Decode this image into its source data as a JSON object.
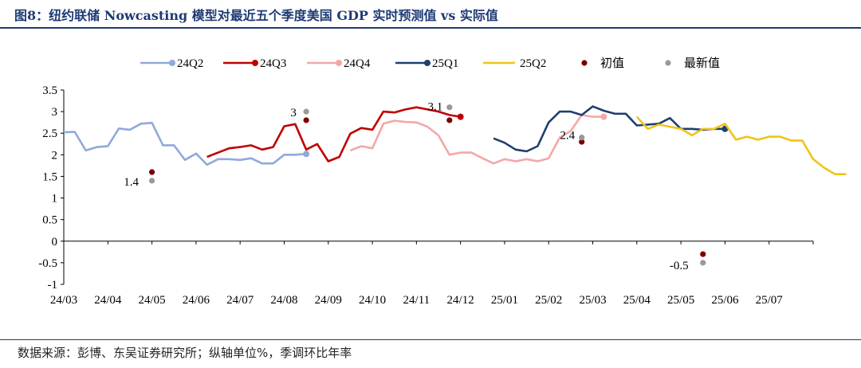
{
  "title": "图8：纽约联储 Nowcasting 模型对最近五个季度美国 GDP 实时预测值 vs 实际值",
  "footer": "数据来源：彭博、东吴证券研究所；纵轴单位%，季调环比年率",
  "chart_data": {
    "type": "line",
    "ylim": [
      -1,
      3.5
    ],
    "yticks": [
      "3.5",
      "3",
      "2.5",
      "2",
      "1.5",
      "1",
      "0.5",
      "0",
      "-0.5",
      "-1"
    ],
    "ytick_values": [
      3.5,
      3,
      2.5,
      2,
      1.5,
      1,
      0.5,
      0,
      -0.5,
      -1
    ],
    "xlim": [
      0,
      17
    ],
    "xticks": [
      "24/03",
      "24/04",
      "24/05",
      "24/06",
      "24/07",
      "24/08",
      "24/09",
      "24/10",
      "24/11",
      "24/12",
      "25/01",
      "25/02",
      "25/03",
      "25/04",
      "25/05",
      "25/06",
      "25/07"
    ],
    "legend_position": "top",
    "series": [
      {
        "name": "24Q2",
        "color": "#8fa9dc",
        "marker_end": true,
        "x": [
          0,
          0.25,
          0.5,
          0.75,
          1.0,
          1.25,
          1.5,
          1.75,
          2.0,
          2.25,
          2.5,
          2.75,
          3.0,
          3.25,
          3.5,
          3.75,
          4.0,
          4.25,
          4.5,
          4.75,
          5.0,
          5.25,
          5.5
        ],
        "y": [
          2.52,
          2.53,
          2.1,
          2.18,
          2.2,
          2.61,
          2.58,
          2.72,
          2.74,
          2.22,
          2.22,
          1.88,
          2.03,
          1.77,
          1.9,
          1.9,
          1.88,
          1.92,
          1.8,
          1.8,
          2.0,
          2.0,
          2.02
        ]
      },
      {
        "name": "24Q3",
        "color": "#c00000",
        "marker_end": true,
        "x": [
          3.25,
          3.5,
          3.75,
          4.0,
          4.25,
          4.5,
          4.75,
          5.0,
          5.25,
          5.5,
          5.75,
          6.0,
          6.25,
          6.5,
          6.75,
          7.0,
          7.25,
          7.5,
          7.75,
          8.0,
          8.25,
          8.5,
          8.75,
          9.0
        ],
        "y": [
          1.95,
          2.05,
          2.15,
          2.18,
          2.22,
          2.12,
          2.18,
          2.66,
          2.71,
          2.12,
          2.25,
          1.85,
          1.95,
          2.49,
          2.62,
          2.58,
          3.0,
          2.98,
          3.05,
          3.1,
          3.05,
          3.0,
          2.92,
          2.88
        ]
      },
      {
        "name": "24Q4",
        "color": "#f4a7a7",
        "marker_end": true,
        "x": [
          6.5,
          6.75,
          7.0,
          7.25,
          7.5,
          7.75,
          8.0,
          8.25,
          8.5,
          8.75,
          9.0,
          9.25,
          9.5,
          9.75,
          10.0,
          10.25,
          10.5,
          10.75,
          11.0,
          11.25,
          11.5,
          11.75,
          12.0,
          12.25
        ],
        "y": [
          2.1,
          2.2,
          2.15,
          2.72,
          2.79,
          2.76,
          2.75,
          2.65,
          2.45,
          2.0,
          2.05,
          2.05,
          1.92,
          1.8,
          1.9,
          1.85,
          1.9,
          1.85,
          1.92,
          2.4,
          2.55,
          2.92,
          2.88,
          2.88
        ]
      },
      {
        "name": "25Q1",
        "color": "#1f3f6e",
        "marker_end": true,
        "x": [
          9.75,
          10.0,
          10.25,
          10.5,
          10.75,
          11.0,
          11.25,
          11.5,
          11.75,
          12.0,
          12.25,
          12.5,
          12.75,
          13.0,
          13.25,
          13.5,
          13.75,
          14.0,
          14.25,
          14.5,
          14.75,
          15.0
        ],
        "y": [
          2.38,
          2.28,
          2.12,
          2.08,
          2.2,
          2.75,
          3.0,
          3.0,
          2.92,
          3.12,
          3.02,
          2.95,
          2.95,
          2.68,
          2.7,
          2.72,
          2.85,
          2.6,
          2.6,
          2.58,
          2.6,
          2.6
        ]
      },
      {
        "name": "25Q2",
        "color": "#f0c419",
        "marker_end": false,
        "x": [
          13.0,
          13.25,
          13.5,
          13.75,
          14.0,
          14.25,
          14.5,
          14.75,
          15.0,
          15.25,
          15.5,
          15.75,
          16.0,
          16.25,
          16.5,
          16.75,
          17.0,
          17.25,
          17.5,
          17.75
        ],
        "y": [
          2.88,
          2.6,
          2.7,
          2.65,
          2.6,
          2.45,
          2.6,
          2.6,
          2.72,
          2.35,
          2.42,
          2.35,
          2.42,
          2.42,
          2.33,
          2.33,
          1.9,
          1.7,
          1.55,
          1.55
        ]
      }
    ],
    "initial_points": {
      "name": "初值",
      "color": "#7b0000",
      "x": [
        2.0,
        5.5,
        8.75,
        11.75,
        14.5
      ],
      "y": [
        1.6,
        2.8,
        2.8,
        2.3,
        -0.3
      ]
    },
    "latest_points": {
      "name": "最新值",
      "color": "#999999",
      "x": [
        2.0,
        5.5,
        8.75,
        11.75,
        14.5
      ],
      "y": [
        1.4,
        3.0,
        3.1,
        2.4,
        -0.5
      ]
    },
    "annotations": [
      {
        "text": "1.4",
        "x": 2.0,
        "y": 1.4
      },
      {
        "text": "3",
        "x": 5.5,
        "y": 3.0
      },
      {
        "text": "3.1",
        "x": 8.75,
        "y": 3.1
      },
      {
        "text": "2.4",
        "x": 11.75,
        "y": 2.4
      },
      {
        "text": "-0.5",
        "x": 14.5,
        "y": -0.5
      }
    ]
  }
}
